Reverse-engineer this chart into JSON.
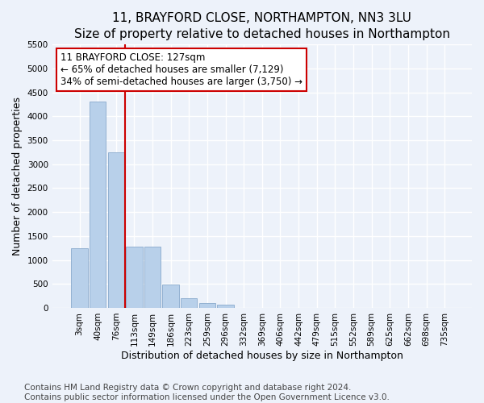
{
  "title": "11, BRAYFORD CLOSE, NORTHAMPTON, NN3 3LU",
  "subtitle": "Size of property relative to detached houses in Northampton",
  "xlabel": "Distribution of detached houses by size in Northampton",
  "ylabel": "Number of detached properties",
  "footer_line1": "Contains HM Land Registry data © Crown copyright and database right 2024.",
  "footer_line2": "Contains public sector information licensed under the Open Government Licence v3.0.",
  "categories": [
    "3sqm",
    "40sqm",
    "76sqm",
    "113sqm",
    "149sqm",
    "186sqm",
    "223sqm",
    "259sqm",
    "296sqm",
    "332sqm",
    "369sqm",
    "406sqm",
    "442sqm",
    "479sqm",
    "515sqm",
    "552sqm",
    "589sqm",
    "625sqm",
    "662sqm",
    "698sqm",
    "735sqm"
  ],
  "bar_values": [
    1250,
    4300,
    3250,
    1270,
    1270,
    490,
    200,
    100,
    60,
    0,
    0,
    0,
    0,
    0,
    0,
    0,
    0,
    0,
    0,
    0,
    0
  ],
  "bar_color": "#b8d0ea",
  "bar_edge_color": "#88aacc",
  "red_line_index": 2.5,
  "property_label": "11 BRAYFORD CLOSE: 127sqm",
  "annotation_line2": "← 65% of detached houses are smaller (7,129)",
  "annotation_line3": "34% of semi-detached houses are larger (3,750) →",
  "annotation_box_facecolor": "#ffffff",
  "annotation_border_color": "#cc0000",
  "red_line_color": "#cc0000",
  "ylim": [
    0,
    5500
  ],
  "yticks": [
    0,
    500,
    1000,
    1500,
    2000,
    2500,
    3000,
    3500,
    4000,
    4500,
    5000,
    5500
  ],
  "bg_color": "#edf2fa",
  "grid_color": "#ffffff",
  "title_fontsize": 11,
  "subtitle_fontsize": 10,
  "axis_label_fontsize": 9,
  "tick_fontsize": 7.5,
  "footer_fontsize": 7.5
}
